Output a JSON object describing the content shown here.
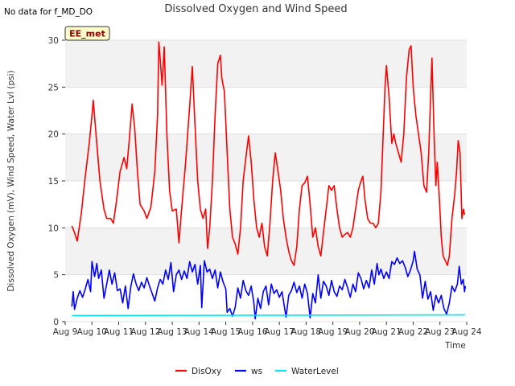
{
  "header": {
    "nodata": "No data for f_MD_DO",
    "badge": "EE_met"
  },
  "chart_data": {
    "type": "line",
    "title": "Dissolved Oxygen and Wind Speed",
    "xlabel": "Time",
    "ylabel": "Dissolved Oxygen (mV), Wind Speed, Water Lvl (psi)",
    "xlim": [
      9,
      24
    ],
    "ylim": [
      0,
      30
    ],
    "x_ticks": [
      9,
      10,
      11,
      12,
      13,
      14,
      15,
      16,
      17,
      18,
      19,
      20,
      21,
      22,
      23,
      24
    ],
    "x_tick_labels": [
      "Aug 9",
      "Aug 10",
      "Aug 11",
      "Aug 12",
      "Aug 13",
      "Aug 14",
      "Aug 15",
      "Aug 16",
      "Aug 17",
      "Aug 18",
      "Aug 19",
      "Aug 20",
      "Aug 21",
      "Aug 22",
      "Aug 23",
      "Aug 24"
    ],
    "y_ticks": [
      0,
      5,
      10,
      15,
      20,
      25,
      30
    ],
    "y_tick_labels": [
      "0",
      "5",
      "10",
      "15",
      "20",
      "25",
      "30"
    ],
    "grid": true,
    "legend_position": "bottom-center",
    "series": [
      {
        "name": "DisOxy",
        "color": "#ff0000",
        "points": [
          [
            9.25,
            10.2
          ],
          [
            9.35,
            9.5
          ],
          [
            9.45,
            8.6
          ],
          [
            9.6,
            11.5
          ],
          [
            9.75,
            15.5
          ],
          [
            9.9,
            19.0
          ],
          [
            10.0,
            22.0
          ],
          [
            10.05,
            23.6
          ],
          [
            10.15,
            20.0
          ],
          [
            10.3,
            15.0
          ],
          [
            10.45,
            12.0
          ],
          [
            10.55,
            11.0
          ],
          [
            10.7,
            11.0
          ],
          [
            10.8,
            10.5
          ],
          [
            10.9,
            12.5
          ],
          [
            11.05,
            16.0
          ],
          [
            11.2,
            17.5
          ],
          [
            11.3,
            16.3
          ],
          [
            11.4,
            19.5
          ],
          [
            11.5,
            23.2
          ],
          [
            11.6,
            20.5
          ],
          [
            11.7,
            16.0
          ],
          [
            11.8,
            12.5
          ],
          [
            11.95,
            11.8
          ],
          [
            12.05,
            11.0
          ],
          [
            12.2,
            12.2
          ],
          [
            12.35,
            16.0
          ],
          [
            12.45,
            22.0
          ],
          [
            12.5,
            29.8
          ],
          [
            12.55,
            28.0
          ],
          [
            12.62,
            25.2
          ],
          [
            12.7,
            29.3
          ],
          [
            12.8,
            20.0
          ],
          [
            12.9,
            14.0
          ],
          [
            13.0,
            11.8
          ],
          [
            13.15,
            12.0
          ],
          [
            13.25,
            8.4
          ],
          [
            13.35,
            12.0
          ],
          [
            13.5,
            17.0
          ],
          [
            13.65,
            23.0
          ],
          [
            13.75,
            27.2
          ],
          [
            13.85,
            21.0
          ],
          [
            13.95,
            15.0
          ],
          [
            14.05,
            12.0
          ],
          [
            14.15,
            11.0
          ],
          [
            14.25,
            12.0
          ],
          [
            14.32,
            7.8
          ],
          [
            14.4,
            10.0
          ],
          [
            14.5,
            15.0
          ],
          [
            14.6,
            22.0
          ],
          [
            14.7,
            27.5
          ],
          [
            14.8,
            28.4
          ],
          [
            14.85,
            26.0
          ],
          [
            14.95,
            24.5
          ],
          [
            15.05,
            18.0
          ],
          [
            15.15,
            12.0
          ],
          [
            15.25,
            9.0
          ],
          [
            15.35,
            8.3
          ],
          [
            15.45,
            7.2
          ],
          [
            15.55,
            10.0
          ],
          [
            15.65,
            15.0
          ],
          [
            15.75,
            17.5
          ],
          [
            15.85,
            19.8
          ],
          [
            15.95,
            17.0
          ],
          [
            16.05,
            13.0
          ],
          [
            16.15,
            10.0
          ],
          [
            16.25,
            9.0
          ],
          [
            16.35,
            10.5
          ],
          [
            16.45,
            8.0
          ],
          [
            16.55,
            7.0
          ],
          [
            16.65,
            10.5
          ],
          [
            16.75,
            15.0
          ],
          [
            16.85,
            18.0
          ],
          [
            16.95,
            16.0
          ],
          [
            17.05,
            14.0
          ],
          [
            17.15,
            11.0
          ],
          [
            17.25,
            9.0
          ],
          [
            17.35,
            7.5
          ],
          [
            17.45,
            6.5
          ],
          [
            17.55,
            6.0
          ],
          [
            17.65,
            8.0
          ],
          [
            17.75,
            12.0
          ],
          [
            17.85,
            14.5
          ],
          [
            17.95,
            14.8
          ],
          [
            18.05,
            15.5
          ],
          [
            18.15,
            12.5
          ],
          [
            18.25,
            9.0
          ],
          [
            18.35,
            10.0
          ],
          [
            18.45,
            8.0
          ],
          [
            18.55,
            7.0
          ],
          [
            18.65,
            9.5
          ],
          [
            18.75,
            12.0
          ],
          [
            18.85,
            14.5
          ],
          [
            18.95,
            14.0
          ],
          [
            19.05,
            14.5
          ],
          [
            19.15,
            12.0
          ],
          [
            19.25,
            10.0
          ],
          [
            19.35,
            9.0
          ],
          [
            19.45,
            9.3
          ],
          [
            19.55,
            9.5
          ],
          [
            19.65,
            9.0
          ],
          [
            19.75,
            10.0
          ],
          [
            19.85,
            12.0
          ],
          [
            19.95,
            14.0
          ],
          [
            20.05,
            15.0
          ],
          [
            20.12,
            15.5
          ],
          [
            20.2,
            13.0
          ],
          [
            20.3,
            11.0
          ],
          [
            20.4,
            10.5
          ],
          [
            20.5,
            10.5
          ],
          [
            20.6,
            10.0
          ],
          [
            20.7,
            10.5
          ],
          [
            20.8,
            14.0
          ],
          [
            20.88,
            20.0
          ],
          [
            20.95,
            25.0
          ],
          [
            21.0,
            27.3
          ],
          [
            21.1,
            24.0
          ],
          [
            21.2,
            19.0
          ],
          [
            21.28,
            20.0
          ],
          [
            21.35,
            19.0
          ],
          [
            21.45,
            18.0
          ],
          [
            21.55,
            17.0
          ],
          [
            21.65,
            20.0
          ],
          [
            21.75,
            26.0
          ],
          [
            21.85,
            29.0
          ],
          [
            21.92,
            29.4
          ],
          [
            22.0,
            25.0
          ],
          [
            22.1,
            22.0
          ],
          [
            22.2,
            20.0
          ],
          [
            22.3,
            18.0
          ],
          [
            22.4,
            14.5
          ],
          [
            22.5,
            13.8
          ],
          [
            22.58,
            18.0
          ],
          [
            22.65,
            24.0
          ],
          [
            22.7,
            28.1
          ],
          [
            22.78,
            20.0
          ],
          [
            22.85,
            14.5
          ],
          [
            22.9,
            17.0
          ],
          [
            22.98,
            13.0
          ],
          [
            23.05,
            9.0
          ],
          [
            23.12,
            7.0
          ],
          [
            23.2,
            6.5
          ],
          [
            23.28,
            6.0
          ],
          [
            23.35,
            7.0
          ],
          [
            23.45,
            11.0
          ],
          [
            23.55,
            13.5
          ],
          [
            23.62,
            16.0
          ],
          [
            23.68,
            19.3
          ],
          [
            23.75,
            18.0
          ],
          [
            23.82,
            11.0
          ],
          [
            23.88,
            12.0
          ],
          [
            23.92,
            11.4
          ]
        ]
      },
      {
        "name": "ws",
        "color": "#0000ff",
        "points": [
          [
            9.25,
            1.6
          ],
          [
            9.3,
            3.2
          ],
          [
            9.35,
            1.3
          ],
          [
            9.45,
            2.5
          ],
          [
            9.55,
            3.3
          ],
          [
            9.65,
            2.6
          ],
          [
            9.75,
            3.5
          ],
          [
            9.85,
            4.5
          ],
          [
            9.95,
            3.2
          ],
          [
            10.0,
            6.4
          ],
          [
            10.1,
            4.8
          ],
          [
            10.18,
            6.2
          ],
          [
            10.25,
            4.6
          ],
          [
            10.35,
            5.5
          ],
          [
            10.45,
            2.5
          ],
          [
            10.55,
            4.0
          ],
          [
            10.65,
            5.5
          ],
          [
            10.75,
            4.0
          ],
          [
            10.85,
            5.2
          ],
          [
            10.95,
            3.3
          ],
          [
            11.05,
            3.5
          ],
          [
            11.15,
            2.0
          ],
          [
            11.25,
            3.8
          ],
          [
            11.35,
            1.4
          ],
          [
            11.45,
            3.7
          ],
          [
            11.55,
            5.1
          ],
          [
            11.65,
            4.0
          ],
          [
            11.75,
            3.3
          ],
          [
            11.85,
            4.2
          ],
          [
            11.95,
            3.6
          ],
          [
            12.05,
            4.7
          ],
          [
            12.15,
            3.8
          ],
          [
            12.25,
            3.0
          ],
          [
            12.35,
            2.2
          ],
          [
            12.45,
            3.6
          ],
          [
            12.55,
            4.5
          ],
          [
            12.65,
            4.0
          ],
          [
            12.75,
            5.5
          ],
          [
            12.85,
            4.5
          ],
          [
            12.95,
            6.3
          ],
          [
            13.05,
            3.2
          ],
          [
            13.15,
            5.0
          ],
          [
            13.25,
            5.5
          ],
          [
            13.35,
            4.5
          ],
          [
            13.45,
            5.4
          ],
          [
            13.55,
            4.6
          ],
          [
            13.65,
            6.4
          ],
          [
            13.75,
            5.3
          ],
          [
            13.85,
            6.1
          ],
          [
            13.95,
            4.0
          ],
          [
            14.05,
            6.0
          ],
          [
            14.1,
            1.5
          ],
          [
            14.2,
            6.5
          ],
          [
            14.3,
            5.3
          ],
          [
            14.4,
            5.6
          ],
          [
            14.5,
            4.6
          ],
          [
            14.6,
            5.5
          ],
          [
            14.7,
            3.6
          ],
          [
            14.8,
            5.3
          ],
          [
            14.9,
            4.2
          ],
          [
            15.0,
            3.5
          ],
          [
            15.05,
            1.0
          ],
          [
            15.15,
            1.4
          ],
          [
            15.25,
            0.6
          ],
          [
            15.35,
            1.5
          ],
          [
            15.45,
            3.6
          ],
          [
            15.55,
            2.5
          ],
          [
            15.65,
            4.4
          ],
          [
            15.75,
            3.3
          ],
          [
            15.85,
            2.8
          ],
          [
            15.95,
            3.8
          ],
          [
            16.05,
            2.0
          ],
          [
            16.1,
            0.3
          ],
          [
            16.2,
            2.5
          ],
          [
            16.3,
            1.4
          ],
          [
            16.4,
            3.2
          ],
          [
            16.5,
            3.8
          ],
          [
            16.6,
            1.8
          ],
          [
            16.7,
            4.0
          ],
          [
            16.8,
            3.0
          ],
          [
            16.9,
            3.4
          ],
          [
            17.0,
            2.6
          ],
          [
            17.1,
            3.2
          ],
          [
            17.2,
            1.4
          ],
          [
            17.25,
            0.5
          ],
          [
            17.35,
            2.8
          ],
          [
            17.45,
            3.3
          ],
          [
            17.55,
            4.2
          ],
          [
            17.65,
            3.1
          ],
          [
            17.75,
            3.8
          ],
          [
            17.85,
            2.5
          ],
          [
            17.95,
            4.0
          ],
          [
            18.05,
            3.0
          ],
          [
            18.15,
            0.4
          ],
          [
            18.25,
            3.0
          ],
          [
            18.35,
            2.0
          ],
          [
            18.45,
            5.0
          ],
          [
            18.55,
            2.5
          ],
          [
            18.65,
            4.3
          ],
          [
            18.75,
            3.8
          ],
          [
            18.85,
            2.8
          ],
          [
            18.95,
            4.4
          ],
          [
            19.05,
            3.2
          ],
          [
            19.15,
            2.7
          ],
          [
            19.25,
            3.8
          ],
          [
            19.35,
            3.4
          ],
          [
            19.45,
            4.5
          ],
          [
            19.55,
            3.6
          ],
          [
            19.65,
            2.6
          ],
          [
            19.75,
            4.0
          ],
          [
            19.85,
            3.2
          ],
          [
            19.95,
            5.2
          ],
          [
            20.05,
            4.6
          ],
          [
            20.15,
            3.5
          ],
          [
            20.25,
            4.4
          ],
          [
            20.35,
            3.6
          ],
          [
            20.45,
            5.5
          ],
          [
            20.55,
            4.0
          ],
          [
            20.65,
            6.2
          ],
          [
            20.72,
            5.0
          ],
          [
            20.8,
            5.6
          ],
          [
            20.9,
            4.6
          ],
          [
            21.0,
            5.3
          ],
          [
            21.1,
            4.6
          ],
          [
            21.2,
            6.4
          ],
          [
            21.3,
            6.1
          ],
          [
            21.4,
            6.8
          ],
          [
            21.5,
            6.2
          ],
          [
            21.6,
            6.5
          ],
          [
            21.7,
            5.8
          ],
          [
            21.8,
            4.8
          ],
          [
            21.9,
            5.5
          ],
          [
            22.0,
            6.5
          ],
          [
            22.05,
            7.5
          ],
          [
            22.15,
            5.6
          ],
          [
            22.25,
            5.0
          ],
          [
            22.35,
            2.5
          ],
          [
            22.45,
            4.3
          ],
          [
            22.55,
            2.4
          ],
          [
            22.65,
            3.2
          ],
          [
            22.75,
            1.2
          ],
          [
            22.85,
            2.8
          ],
          [
            22.95,
            2.0
          ],
          [
            23.05,
            2.8
          ],
          [
            23.15,
            1.4
          ],
          [
            23.25,
            0.8
          ],
          [
            23.35,
            2.0
          ],
          [
            23.45,
            3.8
          ],
          [
            23.55,
            3.2
          ],
          [
            23.65,
            4.0
          ],
          [
            23.72,
            5.9
          ],
          [
            23.8,
            4.0
          ],
          [
            23.87,
            4.5
          ],
          [
            23.92,
            3.2
          ],
          [
            23.95,
            3.8
          ]
        ]
      },
      {
        "name": "WaterLevel",
        "color": "#00e5ee",
        "points": [
          [
            9.25,
            0.65
          ],
          [
            23.95,
            0.72
          ]
        ]
      }
    ]
  }
}
